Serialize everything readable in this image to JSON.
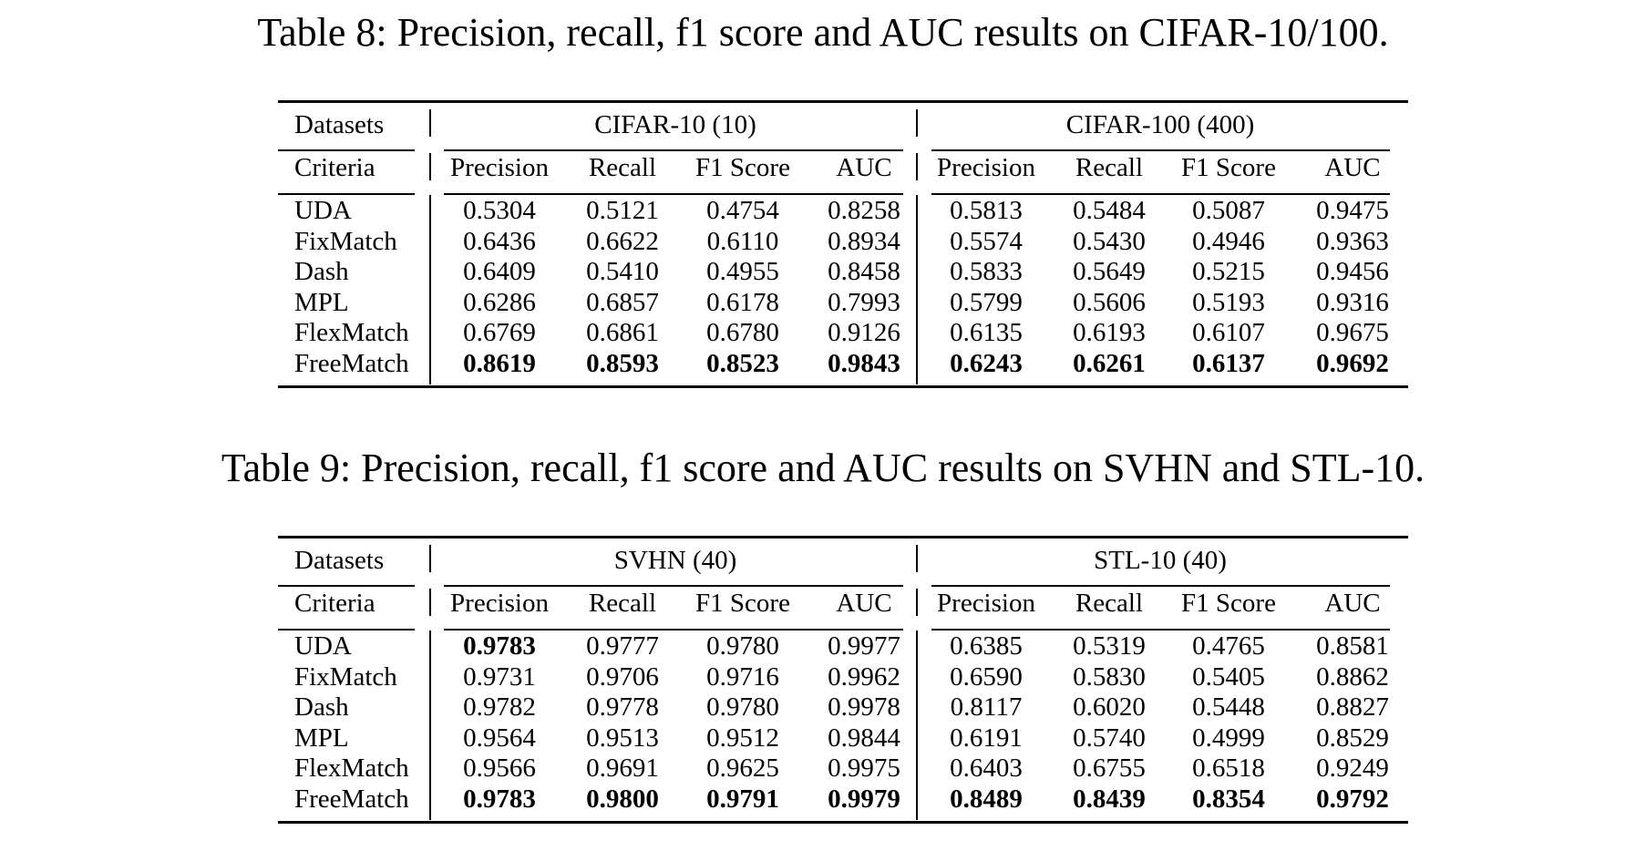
{
  "tables": [
    {
      "caption": "Table 8: Precision, recall, f1 score and AUC results on CIFAR-10/100.",
      "row_header_datasets": "Datasets",
      "row_header_criteria": "Criteria",
      "groups": [
        "CIFAR-10 (10)",
        "CIFAR-100 (400)"
      ],
      "criteria": [
        "Precision",
        "Recall",
        "F1 Score",
        "AUC",
        "Precision",
        "Recall",
        "F1 Score",
        "AUC"
      ],
      "rows": [
        {
          "method": "UDA",
          "values": [
            "0.5304",
            "0.5121",
            "0.4754",
            "0.8258",
            "0.5813",
            "0.5484",
            "0.5087",
            "0.9475"
          ],
          "bold": [
            false,
            false,
            false,
            false,
            false,
            false,
            false,
            false
          ]
        },
        {
          "method": "FixMatch",
          "values": [
            "0.6436",
            "0.6622",
            "0.6110",
            "0.8934",
            "0.5574",
            "0.5430",
            "0.4946",
            "0.9363"
          ],
          "bold": [
            false,
            false,
            false,
            false,
            false,
            false,
            false,
            false
          ]
        },
        {
          "method": "Dash",
          "values": [
            "0.6409",
            "0.5410",
            "0.4955",
            "0.8458",
            "0.5833",
            "0.5649",
            "0.5215",
            "0.9456"
          ],
          "bold": [
            false,
            false,
            false,
            false,
            false,
            false,
            false,
            false
          ]
        },
        {
          "method": "MPL",
          "values": [
            "0.6286",
            "0.6857",
            "0.6178",
            "0.7993",
            "0.5799",
            "0.5606",
            "0.5193",
            "0.9316"
          ],
          "bold": [
            false,
            false,
            false,
            false,
            false,
            false,
            false,
            false
          ]
        },
        {
          "method": "FlexMatch",
          "values": [
            "0.6769",
            "0.6861",
            "0.6780",
            "0.9126",
            "0.6135",
            "0.6193",
            "0.6107",
            "0.9675"
          ],
          "bold": [
            false,
            false,
            false,
            false,
            false,
            false,
            false,
            false
          ]
        },
        {
          "method": "FreeMatch",
          "values": [
            "0.8619",
            "0.8593",
            "0.8523",
            "0.9843",
            "0.6243",
            "0.6261",
            "0.6137",
            "0.9692"
          ],
          "bold": [
            true,
            true,
            true,
            true,
            true,
            true,
            true,
            true
          ]
        }
      ]
    },
    {
      "caption": "Table 9: Precision, recall, f1 score and AUC results on SVHN and STL-10.",
      "row_header_datasets": "Datasets",
      "row_header_criteria": "Criteria",
      "groups": [
        "SVHN (40)",
        "STL-10 (40)"
      ],
      "criteria": [
        "Precision",
        "Recall",
        "F1 Score",
        "AUC",
        "Precision",
        "Recall",
        "F1 Score",
        "AUC"
      ],
      "rows": [
        {
          "method": "UDA",
          "values": [
            "0.9783",
            "0.9777",
            "0.9780",
            "0.9977",
            "0.6385",
            "0.5319",
            "0.4765",
            "0.8581"
          ],
          "bold": [
            true,
            false,
            false,
            false,
            false,
            false,
            false,
            false
          ]
        },
        {
          "method": "FixMatch",
          "values": [
            "0.9731",
            "0.9706",
            "0.9716",
            "0.9962",
            "0.6590",
            "0.5830",
            "0.5405",
            "0.8862"
          ],
          "bold": [
            false,
            false,
            false,
            false,
            false,
            false,
            false,
            false
          ]
        },
        {
          "method": "Dash",
          "values": [
            "0.9782",
            "0.9778",
            "0.9780",
            "0.9978",
            "0.8117",
            "0.6020",
            "0.5448",
            "0.8827"
          ],
          "bold": [
            false,
            false,
            false,
            false,
            false,
            false,
            false,
            false
          ]
        },
        {
          "method": "MPL",
          "values": [
            "0.9564",
            "0.9513",
            "0.9512",
            "0.9844",
            "0.6191",
            "0.5740",
            "0.4999",
            "0.8529"
          ],
          "bold": [
            false,
            false,
            false,
            false,
            false,
            false,
            false,
            false
          ]
        },
        {
          "method": "FlexMatch",
          "values": [
            "0.9566",
            "0.9691",
            "0.9625",
            "0.9975",
            "0.6403",
            "0.6755",
            "0.6518",
            "0.9249"
          ],
          "bold": [
            false,
            false,
            false,
            false,
            false,
            false,
            false,
            false
          ]
        },
        {
          "method": "FreeMatch",
          "values": [
            "0.9783",
            "0.9800",
            "0.9791",
            "0.9979",
            "0.8489",
            "0.8439",
            "0.8354",
            "0.9792"
          ],
          "bold": [
            true,
            true,
            true,
            true,
            true,
            true,
            true,
            true
          ]
        }
      ]
    }
  ]
}
